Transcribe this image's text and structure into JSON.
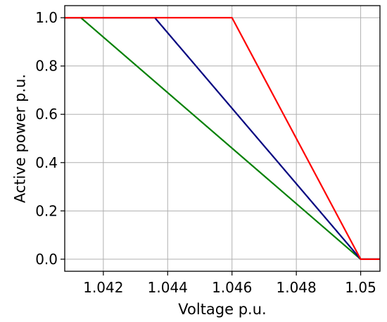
{
  "chart_data": {
    "type": "line",
    "title": "",
    "xlabel": "Voltage p.u.",
    "ylabel": "Active power p.u.",
    "xlim": [
      1.0408,
      1.0506
    ],
    "ylim": [
      -0.05,
      1.05
    ],
    "grid": true,
    "legend": "none",
    "xticks": [
      1.042,
      1.044,
      1.046,
      1.048,
      1.05
    ],
    "xtick_labels": [
      "1.042",
      "1.044",
      "1.046",
      "1.048",
      "1.05"
    ],
    "yticks": [
      0.0,
      0.2,
      0.4,
      0.6,
      0.8,
      1.0
    ],
    "ytick_labels": [
      "0.0",
      "0.2",
      "0.4",
      "0.6",
      "0.8",
      "1.0"
    ],
    "series": [
      {
        "color": "#008000",
        "x": [
          1.0408,
          1.0413,
          1.05,
          1.0506
        ],
        "y": [
          1.0,
          1.0,
          0.0,
          0.0
        ]
      },
      {
        "color": "#000080",
        "x": [
          1.0408,
          1.0436,
          1.05,
          1.0506
        ],
        "y": [
          1.0,
          1.0,
          0.0,
          0.0
        ]
      },
      {
        "color": "#ff0000",
        "x": [
          1.0408,
          1.046,
          1.05,
          1.0506
        ],
        "y": [
          1.0,
          1.0,
          0.0,
          0.0
        ]
      }
    ]
  }
}
